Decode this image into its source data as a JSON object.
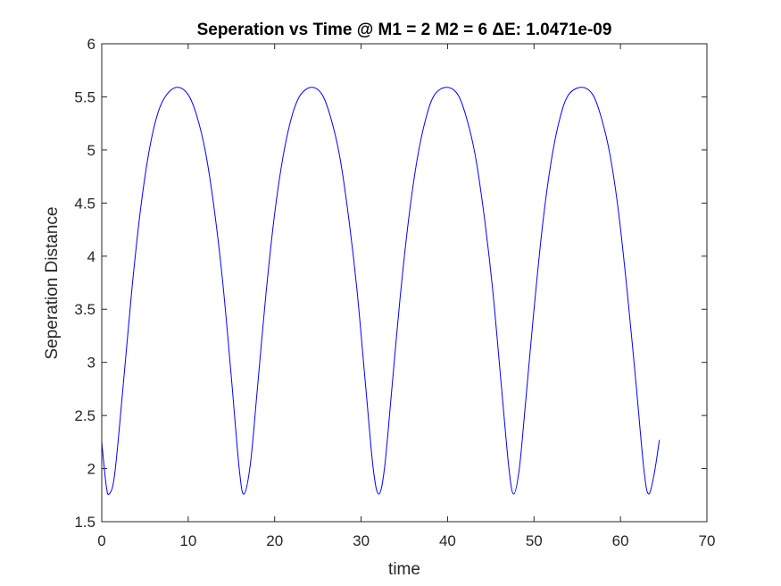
{
  "chart_data": {
    "type": "line",
    "title": "Seperation vs Time @ M1 = 2 M2 = 6 ΔE: 1.0471e-09",
    "xlabel": "time",
    "ylabel": "Seperation Distance",
    "xlim": [
      0,
      70
    ],
    "ylim": [
      1.5,
      6
    ],
    "x_ticks": [
      0,
      10,
      20,
      30,
      40,
      50,
      60,
      70
    ],
    "x_tick_labels": [
      "0",
      "10",
      "20",
      "30",
      "40",
      "50",
      "60",
      "70"
    ],
    "y_ticks": [
      1.5,
      2,
      2.5,
      3,
      3.5,
      4,
      4.5,
      5,
      5.5,
      6
    ],
    "y_tick_labels": [
      "1.5",
      "2",
      "2.5",
      "3",
      "3.5",
      "4",
      "4.5",
      "5",
      "5.5",
      "6"
    ],
    "grid": false,
    "series": [
      {
        "color": "#0000ff",
        "x": [
          0,
          0.5,
          0.85,
          1.5,
          2.5,
          3.5,
          4.5,
          5.5,
          6.5,
          7.5,
          8.75,
          10,
          11,
          12,
          13,
          14,
          15,
          15.9,
          16.45,
          17.2,
          18,
          19,
          20,
          21,
          22,
          23,
          24.3,
          25.5,
          26.5,
          27.5,
          28.5,
          29.5,
          30.5,
          31.4,
          32.05,
          32.7,
          33.5,
          34.5,
          35.5,
          36.5,
          37.5,
          38.5,
          39.9,
          41.2,
          42.2,
          43.2,
          44.2,
          45.2,
          46.2,
          47.1,
          47.65,
          48.3,
          49,
          50,
          51,
          52,
          53,
          54,
          55.5,
          56.8,
          57.8,
          58.8,
          59.8,
          60.8,
          61.8,
          62.7,
          63.25,
          63.9,
          64.5
        ],
        "y": [
          2.25,
          1.85,
          1.76,
          1.95,
          2.8,
          3.7,
          4.45,
          5.0,
          5.35,
          5.52,
          5.59,
          5.52,
          5.32,
          4.98,
          4.45,
          3.75,
          2.85,
          2.0,
          1.76,
          2.05,
          2.75,
          3.65,
          4.4,
          4.95,
          5.32,
          5.52,
          5.59,
          5.52,
          5.3,
          4.95,
          4.4,
          3.7,
          2.8,
          2.0,
          1.76,
          2.0,
          2.7,
          3.6,
          4.35,
          4.92,
          5.3,
          5.52,
          5.59,
          5.52,
          5.3,
          4.95,
          4.4,
          3.7,
          2.8,
          2.0,
          1.76,
          2.0,
          2.6,
          3.5,
          4.3,
          4.9,
          5.3,
          5.52,
          5.59,
          5.52,
          5.3,
          4.95,
          4.4,
          3.65,
          2.8,
          2.0,
          1.76,
          1.95,
          2.27
        ]
      }
    ]
  }
}
